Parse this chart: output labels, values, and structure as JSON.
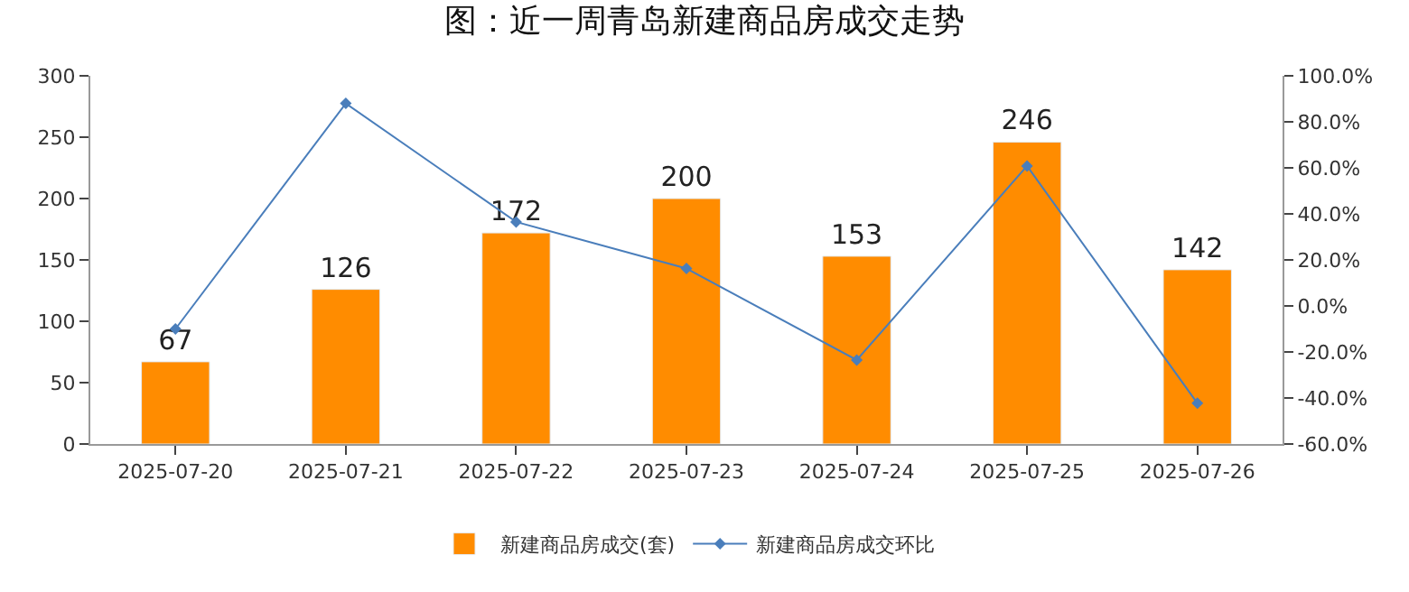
{
  "chart_data": {
    "type": "bar",
    "title": "图：近一周青岛新建商品房成交走势",
    "categories": [
      "2025-07-20",
      "2025-07-21",
      "2025-07-22",
      "2025-07-23",
      "2025-07-24",
      "2025-07-25",
      "2025-07-26"
    ],
    "series": [
      {
        "name": "新建商品房成交(套)",
        "color": "#ff8c00",
        "values": [
          67,
          126,
          172,
          200,
          153,
          246,
          142
        ],
        "data_labels": true
      },
      {
        "name": "新建商品房成交环比",
        "type": "line",
        "axis": "y2",
        "color": "#4a7ebb",
        "marker": "diamond",
        "values": [
          -10,
          88,
          36.5,
          16.3,
          -23.5,
          60.8,
          -42.3
        ]
      }
    ],
    "ylim": [
      0,
      300
    ],
    "yticks": [
      0,
      50,
      100,
      150,
      200,
      250,
      300
    ],
    "y2lim": [
      -60,
      100
    ],
    "y2ticks": [
      {
        "value": -60,
        "label": "-60.0%"
      },
      {
        "value": -40,
        "label": "-40.0%"
      },
      {
        "value": -20,
        "label": "-20.0%"
      },
      {
        "value": 0,
        "label": "0.0%"
      },
      {
        "value": 20,
        "label": "20.0%"
      },
      {
        "value": 40,
        "label": "40.0%"
      },
      {
        "value": 60,
        "label": "60.0%"
      },
      {
        "value": 80,
        "label": "80.0%"
      },
      {
        "value": 100,
        "label": "100.0%"
      }
    ],
    "legend": "bottom"
  }
}
